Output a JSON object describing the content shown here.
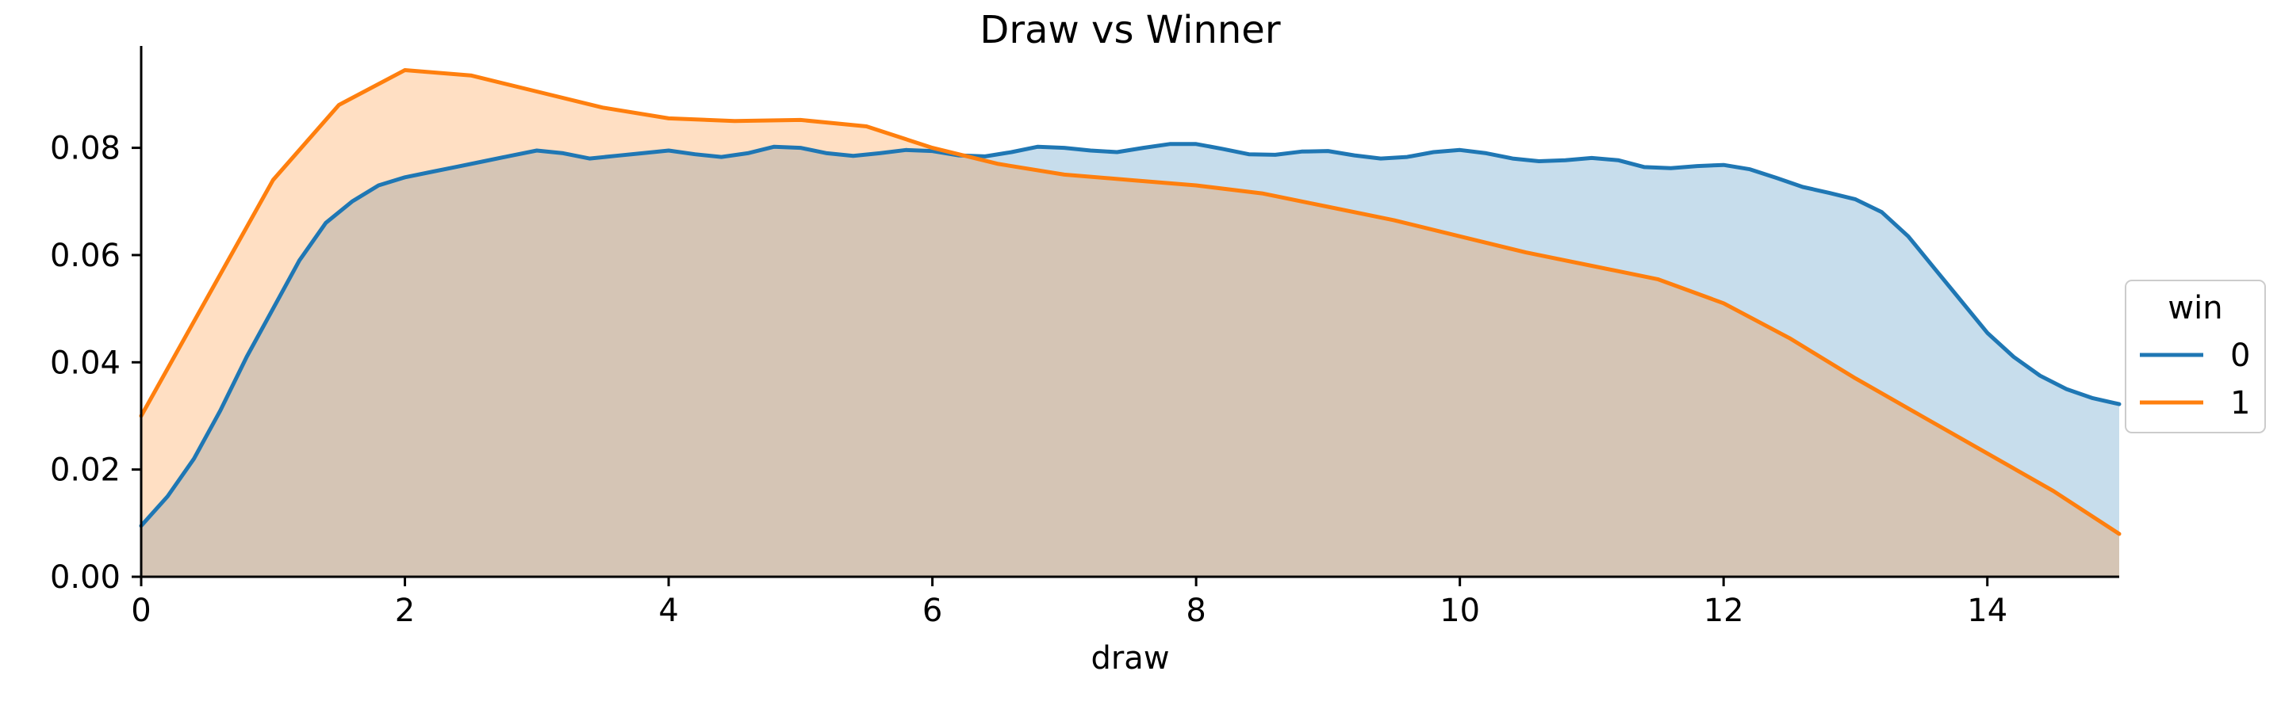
{
  "chart_data": {
    "type": "area",
    "title": "Draw vs Winner",
    "xlabel": "draw",
    "ylabel": "",
    "xlim": [
      0,
      15
    ],
    "ylim": [
      0,
      0.099
    ],
    "x_ticks": [
      0,
      2,
      4,
      6,
      8,
      10,
      12,
      14
    ],
    "x_tick_labels": [
      "0",
      "2",
      "4",
      "6",
      "8",
      "10",
      "12",
      "14"
    ],
    "y_ticks": [
      0.0,
      0.02,
      0.04,
      0.06,
      0.08
    ],
    "y_tick_labels": [
      "0.00",
      "0.02",
      "0.04",
      "0.06",
      "0.08"
    ],
    "grid": false,
    "legend": {
      "title": "win",
      "placement": "center-right, outside plot"
    },
    "series": [
      {
        "name": "0",
        "color": "#1f77b4",
        "fill_color": "#c6dbef",
        "points": [
          [
            0,
            0.0095
          ],
          [
            0.2,
            0.015
          ],
          [
            0.4,
            0.022
          ],
          [
            0.6,
            0.031
          ],
          [
            0.8,
            0.041
          ],
          [
            1.0,
            0.05
          ],
          [
            1.2,
            0.059
          ],
          [
            1.4,
            0.066
          ],
          [
            1.6,
            0.07
          ],
          [
            1.8,
            0.073
          ],
          [
            2.0,
            0.0745
          ],
          [
            2.2,
            0.0755
          ],
          [
            2.4,
            0.0765
          ],
          [
            2.6,
            0.0775
          ],
          [
            2.8,
            0.0785
          ],
          [
            3.0,
            0.0795
          ],
          [
            3.2,
            0.079
          ],
          [
            3.4,
            0.078
          ],
          [
            3.6,
            0.0785
          ],
          [
            3.8,
            0.079
          ],
          [
            4.0,
            0.0795
          ],
          [
            4.2,
            0.0788
          ],
          [
            4.4,
            0.0783
          ],
          [
            4.6,
            0.079
          ],
          [
            4.8,
            0.0802
          ],
          [
            5.0,
            0.08
          ],
          [
            5.2,
            0.079
          ],
          [
            5.4,
            0.0785
          ],
          [
            5.6,
            0.079
          ],
          [
            5.8,
            0.0796
          ],
          [
            6.0,
            0.0794
          ],
          [
            6.2,
            0.0786
          ],
          [
            6.4,
            0.0784
          ],
          [
            6.6,
            0.0792
          ],
          [
            6.8,
            0.0802
          ],
          [
            7.0,
            0.08
          ],
          [
            7.2,
            0.0795
          ],
          [
            7.4,
            0.0792
          ],
          [
            7.6,
            0.08
          ],
          [
            7.8,
            0.0807
          ],
          [
            8.0,
            0.0807
          ],
          [
            8.2,
            0.0798
          ],
          [
            8.4,
            0.0788
          ],
          [
            8.6,
            0.0787
          ],
          [
            8.8,
            0.0793
          ],
          [
            9.0,
            0.0794
          ],
          [
            9.2,
            0.0786
          ],
          [
            9.4,
            0.078
          ],
          [
            9.6,
            0.0783
          ],
          [
            9.8,
            0.0792
          ],
          [
            10.0,
            0.0796
          ],
          [
            10.2,
            0.079
          ],
          [
            10.4,
            0.078
          ],
          [
            10.6,
            0.0775
          ],
          [
            10.8,
            0.0777
          ],
          [
            11.0,
            0.0781
          ],
          [
            11.2,
            0.0777
          ],
          [
            11.4,
            0.0764
          ],
          [
            11.6,
            0.0762
          ],
          [
            11.8,
            0.0766
          ],
          [
            12.0,
            0.0768
          ],
          [
            12.2,
            0.076
          ],
          [
            12.4,
            0.0744
          ],
          [
            12.6,
            0.0727
          ],
          [
            12.8,
            0.0716
          ],
          [
            13.0,
            0.0704
          ],
          [
            13.2,
            0.068
          ],
          [
            13.4,
            0.0635
          ],
          [
            13.6,
            0.0575
          ],
          [
            13.8,
            0.0515
          ],
          [
            14.0,
            0.0455
          ],
          [
            14.2,
            0.041
          ],
          [
            14.4,
            0.0375
          ],
          [
            14.6,
            0.035
          ],
          [
            14.8,
            0.0333
          ],
          [
            15.0,
            0.0322
          ]
        ]
      },
      {
        "name": "1",
        "color": "#ff7f0e",
        "fill_color": "#ffdab9",
        "points": [
          [
            0,
            0.03
          ],
          [
            0.5,
            0.052
          ],
          [
            1.0,
            0.074
          ],
          [
            1.5,
            0.088
          ],
          [
            2.0,
            0.0945
          ],
          [
            2.5,
            0.0935
          ],
          [
            3.0,
            0.0905
          ],
          [
            3.5,
            0.0875
          ],
          [
            4.0,
            0.0855
          ],
          [
            4.5,
            0.085
          ],
          [
            5.0,
            0.0852
          ],
          [
            5.5,
            0.084
          ],
          [
            6.0,
            0.08
          ],
          [
            6.5,
            0.077
          ],
          [
            7.0,
            0.075
          ],
          [
            7.5,
            0.074
          ],
          [
            8.0,
            0.073
          ],
          [
            8.5,
            0.0715
          ],
          [
            9.0,
            0.069
          ],
          [
            9.5,
            0.0665
          ],
          [
            10.0,
            0.0635
          ],
          [
            10.5,
            0.0605
          ],
          [
            11.0,
            0.058
          ],
          [
            11.5,
            0.0555
          ],
          [
            12.0,
            0.051
          ],
          [
            12.5,
            0.0445
          ],
          [
            13.0,
            0.037
          ],
          [
            13.5,
            0.03
          ],
          [
            14.0,
            0.023
          ],
          [
            14.5,
            0.016
          ],
          [
            15.0,
            0.008
          ]
        ]
      }
    ]
  }
}
